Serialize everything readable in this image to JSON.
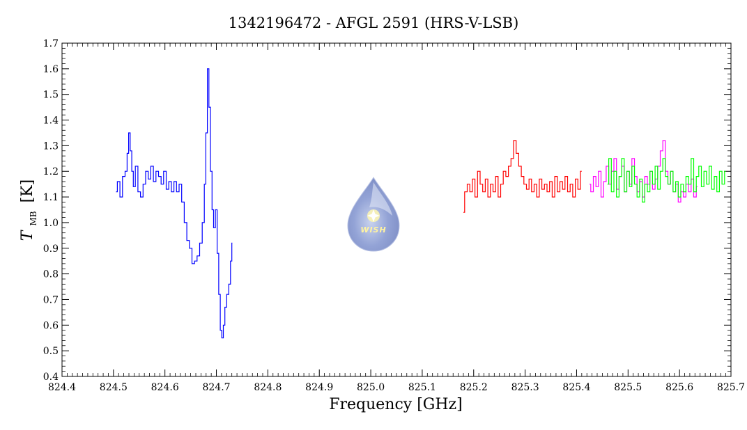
{
  "chart_data": {
    "type": "line",
    "title": "1342196472 - AFGL 2591 (HRS-V-LSB)",
    "xlabel": "Frequency [GHz]",
    "ylabel": {
      "main": "T",
      "sub": "MB",
      "unit": "[K]"
    },
    "xlim": [
      824.4,
      825.7
    ],
    "ylim": [
      0.4,
      1.7
    ],
    "xticks": [
      "824.4",
      "824.5",
      "824.6",
      "824.7",
      "824.8",
      "824.9",
      "825.0",
      "825.1",
      "825.2",
      "825.3",
      "825.4",
      "825.5",
      "825.6",
      "825.7"
    ],
    "yticks": [
      "0.4",
      "0.5",
      "0.6",
      "0.7",
      "0.8",
      "0.9",
      "1.0",
      "1.1",
      "1.2",
      "1.3",
      "1.4",
      "1.5",
      "1.6",
      "1.7"
    ],
    "grid": false,
    "legend": "none",
    "logo_text": "WISH",
    "series": [
      {
        "color": "#0000ff",
        "points": [
          [
            824.505,
            1.12
          ],
          [
            824.51,
            1.16
          ],
          [
            824.515,
            1.1
          ],
          [
            824.52,
            1.18
          ],
          [
            824.525,
            1.2
          ],
          [
            824.528,
            1.27
          ],
          [
            824.531,
            1.35
          ],
          [
            824.534,
            1.28
          ],
          [
            824.537,
            1.2
          ],
          [
            824.54,
            1.14
          ],
          [
            824.545,
            1.22
          ],
          [
            824.55,
            1.12
          ],
          [
            824.555,
            1.1
          ],
          [
            824.56,
            1.15
          ],
          [
            824.565,
            1.2
          ],
          [
            824.57,
            1.17
          ],
          [
            824.575,
            1.22
          ],
          [
            824.58,
            1.16
          ],
          [
            824.585,
            1.2
          ],
          [
            824.59,
            1.18
          ],
          [
            824.595,
            1.15
          ],
          [
            824.6,
            1.2
          ],
          [
            824.605,
            1.13
          ],
          [
            824.61,
            1.16
          ],
          [
            824.615,
            1.12
          ],
          [
            824.62,
            1.16
          ],
          [
            824.625,
            1.12
          ],
          [
            824.63,
            1.15
          ],
          [
            824.635,
            1.08
          ],
          [
            824.64,
            1.0
          ],
          [
            824.645,
            0.93
          ],
          [
            824.65,
            0.9
          ],
          [
            824.655,
            0.84
          ],
          [
            824.66,
            0.85
          ],
          [
            824.665,
            0.87
          ],
          [
            824.67,
            0.92
          ],
          [
            824.675,
            1.0
          ],
          [
            824.678,
            1.15
          ],
          [
            824.681,
            1.35
          ],
          [
            824.684,
            1.6
          ],
          [
            824.687,
            1.45
          ],
          [
            824.69,
            1.2
          ],
          [
            824.693,
            1.05
          ],
          [
            824.696,
            0.98
          ],
          [
            824.7,
            1.05
          ],
          [
            824.703,
            0.88
          ],
          [
            824.706,
            0.72
          ],
          [
            824.709,
            0.58
          ],
          [
            824.712,
            0.55
          ],
          [
            824.715,
            0.6
          ],
          [
            824.718,
            0.67
          ],
          [
            824.722,
            0.72
          ],
          [
            824.726,
            0.76
          ],
          [
            824.729,
            0.85
          ],
          [
            824.731,
            0.92
          ]
        ]
      },
      {
        "color": "#ff0000",
        "points": [
          [
            825.18,
            1.04
          ],
          [
            825.185,
            1.12
          ],
          [
            825.19,
            1.15
          ],
          [
            825.195,
            1.12
          ],
          [
            825.2,
            1.17
          ],
          [
            825.205,
            1.1
          ],
          [
            825.21,
            1.2
          ],
          [
            825.215,
            1.15
          ],
          [
            825.22,
            1.12
          ],
          [
            825.225,
            1.17
          ],
          [
            825.23,
            1.1
          ],
          [
            825.235,
            1.15
          ],
          [
            825.24,
            1.12
          ],
          [
            825.245,
            1.18
          ],
          [
            825.25,
            1.1
          ],
          [
            825.255,
            1.15
          ],
          [
            825.26,
            1.2
          ],
          [
            825.265,
            1.18
          ],
          [
            825.27,
            1.22
          ],
          [
            825.275,
            1.25
          ],
          [
            825.28,
            1.32
          ],
          [
            825.285,
            1.27
          ],
          [
            825.29,
            1.22
          ],
          [
            825.295,
            1.18
          ],
          [
            825.3,
            1.15
          ],
          [
            825.305,
            1.13
          ],
          [
            825.31,
            1.17
          ],
          [
            825.315,
            1.12
          ],
          [
            825.32,
            1.15
          ],
          [
            825.325,
            1.1
          ],
          [
            825.33,
            1.17
          ],
          [
            825.335,
            1.13
          ],
          [
            825.34,
            1.15
          ],
          [
            825.345,
            1.12
          ],
          [
            825.35,
            1.16
          ],
          [
            825.355,
            1.1
          ],
          [
            825.36,
            1.18
          ],
          [
            825.365,
            1.12
          ],
          [
            825.37,
            1.16
          ],
          [
            825.375,
            1.13
          ],
          [
            825.38,
            1.18
          ],
          [
            825.385,
            1.12
          ],
          [
            825.39,
            1.15
          ],
          [
            825.395,
            1.1
          ],
          [
            825.4,
            1.17
          ],
          [
            825.405,
            1.13
          ],
          [
            825.41,
            1.2
          ]
        ]
      },
      {
        "color": "#ff00ff",
        "points": [
          [
            825.425,
            1.15
          ],
          [
            825.43,
            1.12
          ],
          [
            825.435,
            1.18
          ],
          [
            825.44,
            1.14
          ],
          [
            825.445,
            1.2
          ],
          [
            825.45,
            1.1
          ],
          [
            825.455,
            1.16
          ],
          [
            825.46,
            1.22
          ],
          [
            825.465,
            1.15
          ],
          [
            825.47,
            1.2
          ],
          [
            825.475,
            1.25
          ],
          [
            825.48,
            1.13
          ],
          [
            825.485,
            1.18
          ],
          [
            825.49,
            1.22
          ],
          [
            825.495,
            1.12
          ],
          [
            825.5,
            1.2
          ],
          [
            825.505,
            1.15
          ],
          [
            825.51,
            1.25
          ],
          [
            825.515,
            1.18
          ],
          [
            825.52,
            1.12
          ],
          [
            825.525,
            1.16
          ],
          [
            825.53,
            1.1
          ],
          [
            825.535,
            1.18
          ],
          [
            825.54,
            1.15
          ],
          [
            825.545,
            1.2
          ],
          [
            825.55,
            1.13
          ],
          [
            825.555,
            1.17
          ],
          [
            825.56,
            1.22
          ],
          [
            825.565,
            1.28
          ],
          [
            825.57,
            1.32
          ],
          [
            825.575,
            1.2
          ],
          [
            825.58,
            1.15
          ],
          [
            825.585,
            1.2
          ],
          [
            825.59,
            1.12
          ],
          [
            825.595,
            1.15
          ],
          [
            825.6,
            1.08
          ],
          [
            825.605,
            1.12
          ],
          [
            825.61,
            1.1
          ],
          [
            825.615,
            1.15
          ],
          [
            825.62,
            1.12
          ],
          [
            825.625,
            1.17
          ],
          [
            825.63,
            1.1
          ],
          [
            825.635,
            1.14
          ]
        ]
      },
      {
        "color": "#00ff00",
        "points": [
          [
            825.46,
            1.15
          ],
          [
            825.465,
            1.25
          ],
          [
            825.47,
            1.12
          ],
          [
            825.475,
            1.2
          ],
          [
            825.48,
            1.1
          ],
          [
            825.485,
            1.18
          ],
          [
            825.49,
            1.25
          ],
          [
            825.495,
            1.12
          ],
          [
            825.5,
            1.2
          ],
          [
            825.505,
            1.14
          ],
          [
            825.51,
            1.22
          ],
          [
            825.515,
            1.15
          ],
          [
            825.52,
            1.1
          ],
          [
            825.525,
            1.17
          ],
          [
            825.53,
            1.08
          ],
          [
            825.535,
            1.15
          ],
          [
            825.54,
            1.12
          ],
          [
            825.545,
            1.2
          ],
          [
            825.55,
            1.15
          ],
          [
            825.555,
            1.22
          ],
          [
            825.56,
            1.13
          ],
          [
            825.565,
            1.2
          ],
          [
            825.57,
            1.25
          ],
          [
            825.575,
            1.18
          ],
          [
            825.58,
            1.15
          ],
          [
            825.585,
            1.2
          ],
          [
            825.59,
            1.12
          ],
          [
            825.595,
            1.16
          ],
          [
            825.6,
            1.1
          ],
          [
            825.605,
            1.15
          ],
          [
            825.61,
            1.12
          ],
          [
            825.615,
            1.18
          ],
          [
            825.62,
            1.15
          ],
          [
            825.625,
            1.25
          ],
          [
            825.63,
            1.12
          ],
          [
            825.635,
            1.18
          ],
          [
            825.64,
            1.22
          ],
          [
            825.645,
            1.14
          ],
          [
            825.65,
            1.2
          ],
          [
            825.655,
            1.15
          ],
          [
            825.66,
            1.22
          ],
          [
            825.665,
            1.13
          ],
          [
            825.67,
            1.18
          ],
          [
            825.675,
            1.12
          ],
          [
            825.68,
            1.2
          ],
          [
            825.685,
            1.15
          ],
          [
            825.69,
            1.2
          ]
        ]
      }
    ]
  }
}
